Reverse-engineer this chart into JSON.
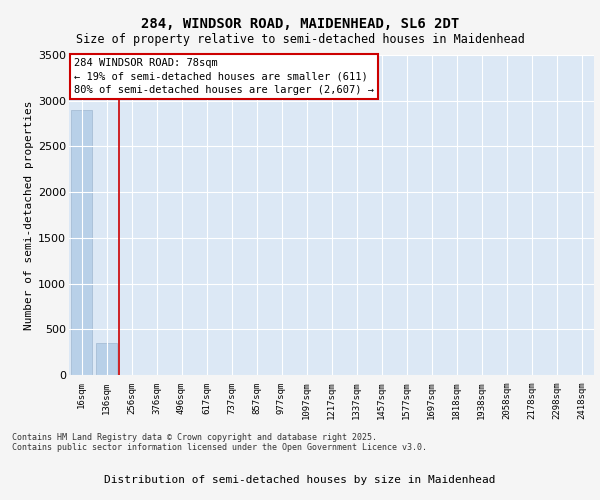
{
  "title1": "284, WINDSOR ROAD, MAIDENHEAD, SL6 2DT",
  "title2": "Size of property relative to semi-detached houses in Maidenhead",
  "xlabel": "Distribution of semi-detached houses by size in Maidenhead",
  "ylabel": "Number of semi-detached properties",
  "annotation_title": "284 WINDSOR ROAD: 78sqm",
  "annotation_line2": "← 19% of semi-detached houses are smaller (611)",
  "annotation_line3": "80% of semi-detached houses are larger (2,607) →",
  "footer1": "Contains HM Land Registry data © Crown copyright and database right 2025.",
  "footer2": "Contains public sector information licensed under the Open Government Licence v3.0.",
  "categories": [
    "16sqm",
    "136sqm",
    "256sqm",
    "376sqm",
    "496sqm",
    "617sqm",
    "737sqm",
    "857sqm",
    "977sqm",
    "1097sqm",
    "1217sqm",
    "1337sqm",
    "1457sqm",
    "1577sqm",
    "1697sqm",
    "1818sqm",
    "1938sqm",
    "2058sqm",
    "2178sqm",
    "2298sqm",
    "2418sqm"
  ],
  "values": [
    2900,
    350,
    0,
    0,
    0,
    0,
    0,
    0,
    0,
    0,
    0,
    0,
    0,
    0,
    0,
    0,
    0,
    0,
    0,
    0,
    0
  ],
  "bar_color": "#b8d0e8",
  "vline_color": "#cc0000",
  "ylim": [
    0,
    3500
  ],
  "yticks": [
    0,
    500,
    1000,
    1500,
    2000,
    2500,
    3000,
    3500
  ],
  "annotation_box_color": "#cc0000",
  "bg_color": "#dce8f5",
  "fig_color": "#f5f5f5"
}
